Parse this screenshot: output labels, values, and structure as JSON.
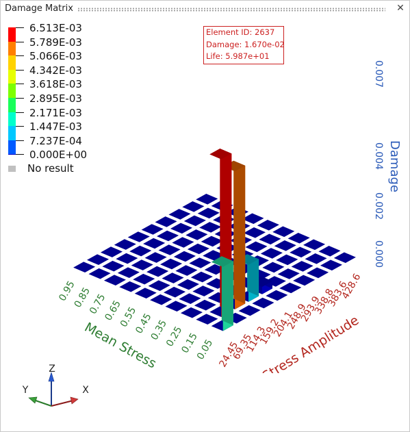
{
  "window": {
    "title": "Damage Matrix",
    "close_glyph": "✕"
  },
  "legend": {
    "entries": [
      {
        "label": "6.513E-03",
        "color": "#ff0000"
      },
      {
        "label": "5.789E-03",
        "color": "#ff7f00"
      },
      {
        "label": "5.066E-03",
        "color": "#ffd200"
      },
      {
        "label": "4.342E-03",
        "color": "#e7ff00"
      },
      {
        "label": "3.618E-03",
        "color": "#7dff00"
      },
      {
        "label": "2.895E-03",
        "color": "#19ff5a"
      },
      {
        "label": "2.171E-03",
        "color": "#00ffcc"
      },
      {
        "label": "1.447E-03",
        "color": "#00c8ff"
      },
      {
        "label": "7.237E-04",
        "color": "#005aff"
      },
      {
        "label": "0.000E+00",
        "color": "#0000c8"
      }
    ],
    "no_result_label": "No result"
  },
  "probe": {
    "element_id": "Element ID: 2637",
    "damage": "Damage: 1.670e-02",
    "life": "Life: 5.987e+01"
  },
  "triad": {
    "z": "Z",
    "y": "Y",
    "x": "X"
  },
  "chart_data": {
    "type": "bar3d",
    "title": "",
    "xlabel": "Stress Amplitude",
    "ylabel": "Mean Stress",
    "zlabel": "Damage",
    "x_categories": [
      "24.45",
      "69.35",
      "114.3",
      "159.2",
      "204.1",
      "248.9",
      "293.9",
      "338.8",
      "383.6",
      "428.6"
    ],
    "y_categories": [
      "0.05",
      "0.15",
      "0.25",
      "0.35",
      "0.45",
      "0.55",
      "0.65",
      "0.75",
      "0.85",
      "0.95"
    ],
    "z_ticks": [
      "0.000",
      "0.002",
      "0.004",
      "0.007"
    ],
    "zlim": [
      0,
      0.007
    ],
    "bars": [
      {
        "x": "24.45",
        "y": "0.05",
        "value": 0.0026,
        "color": "#1fd39a"
      },
      {
        "x": "69.35",
        "y": "0.15",
        "value": 0.0064,
        "color": "#e00000"
      },
      {
        "x": "114.3",
        "y": "0.15",
        "value": 0.0056,
        "color": "#dd6000"
      },
      {
        "x": "159.2",
        "y": "0.15",
        "value": 0.0015,
        "color": "#00b2c8"
      },
      {
        "x": "204.1",
        "y": "0.15",
        "value": 0.0003,
        "color": "#0000b8"
      }
    ],
    "base_cell_value": 0.0,
    "base_cell_color": "#000090"
  }
}
